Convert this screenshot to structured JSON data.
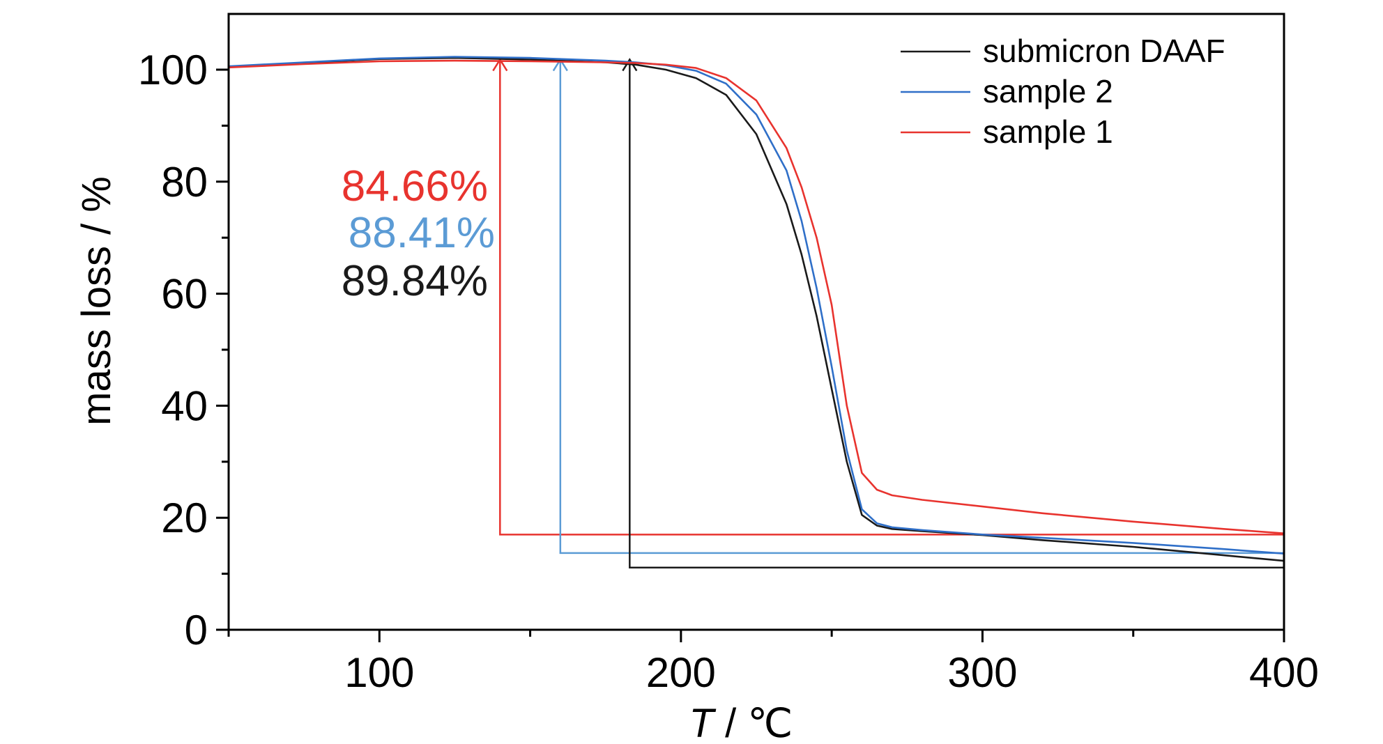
{
  "chart_data": {
    "type": "line",
    "xlabel_var": "T",
    "xlabel_unit": " / ℃",
    "ylabel": "mass loss / %",
    "xlim": [
      50,
      400
    ],
    "ylim": [
      0,
      110
    ],
    "x_ticks": [
      100,
      200,
      300,
      400
    ],
    "y_ticks": [
      0,
      20,
      40,
      60,
      80,
      100
    ],
    "x_minor_ticks": [
      50,
      150,
      250,
      350
    ],
    "y_minor_ticks": [
      10,
      30,
      50,
      70,
      90
    ],
    "grid": false,
    "legend_position": "top-right",
    "series": [
      {
        "name": "submicron DAAF",
        "color": "#1a1a1a",
        "x": [
          50,
          75,
          100,
          125,
          150,
          175,
          185,
          195,
          205,
          215,
          225,
          235,
          240,
          245,
          250,
          255,
          260,
          265,
          270,
          280,
          300,
          320,
          350,
          380,
          400
        ],
        "y": [
          100.5,
          101.2,
          101.9,
          102.1,
          101.8,
          101.3,
          100.9,
          100.0,
          98.5,
          95.5,
          88.5,
          76.0,
          67.0,
          56.0,
          43.0,
          30.0,
          20.5,
          18.6,
          18.0,
          17.6,
          16.9,
          16.0,
          14.8,
          13.3,
          12.3
        ]
      },
      {
        "name": "sample 2",
        "color": "#2f6fc8",
        "x": [
          50,
          75,
          100,
          125,
          150,
          175,
          185,
          195,
          205,
          215,
          225,
          235,
          240,
          245,
          250,
          255,
          260,
          265,
          270,
          280,
          300,
          320,
          350,
          380,
          400
        ],
        "y": [
          100.6,
          101.3,
          102.0,
          102.3,
          102.1,
          101.6,
          101.3,
          100.8,
          99.8,
          97.5,
          92.0,
          82.0,
          73.0,
          61.0,
          47.0,
          32.0,
          21.5,
          19.0,
          18.3,
          17.8,
          17.0,
          16.4,
          15.5,
          14.4,
          13.6
        ]
      },
      {
        "name": "sample 1",
        "color": "#e8332e",
        "x": [
          50,
          75,
          100,
          125,
          150,
          175,
          185,
          195,
          205,
          215,
          225,
          235,
          240,
          245,
          250,
          255,
          260,
          265,
          270,
          280,
          300,
          320,
          350,
          380,
          400
        ],
        "y": [
          100.4,
          101.0,
          101.5,
          101.6,
          101.5,
          101.3,
          101.2,
          100.9,
          100.3,
          98.5,
          94.5,
          86.0,
          79.0,
          70.0,
          58.0,
          40.0,
          28.0,
          25.0,
          24.0,
          23.2,
          22.0,
          20.8,
          19.3,
          18.0,
          17.2
        ]
      }
    ],
    "annotations": [
      {
        "text": "84.66%",
        "color": "#e8332e",
        "arrow_x": 140,
        "baseline_y": 17.0
      },
      {
        "text": "88.41%",
        "color": "#5b9bd5",
        "arrow_x": 160,
        "baseline_y": 13.7
      },
      {
        "text": "89.84%",
        "color": "#1a1a1a",
        "arrow_x": 183,
        "baseline_y": 11.1
      }
    ]
  }
}
